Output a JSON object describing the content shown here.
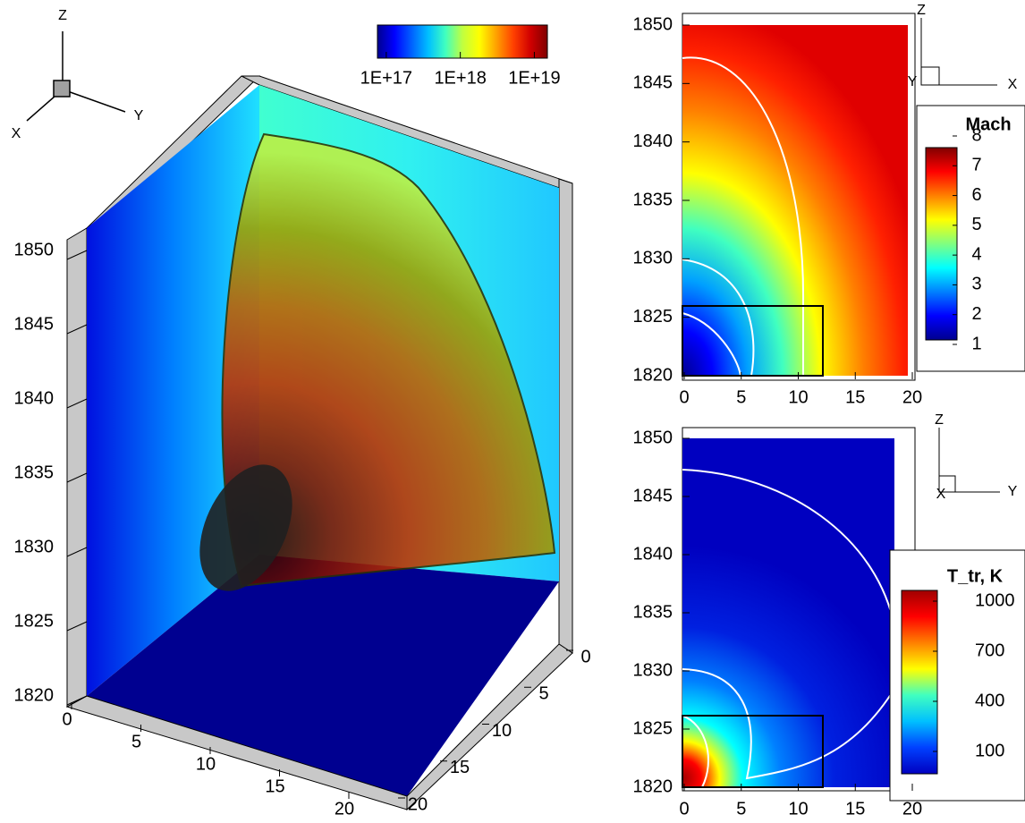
{
  "chart_data": [
    {
      "type": "surface3d",
      "colorbar": {
        "ticks": [
          {
            "value": 1e+17,
            "label": "1E+17"
          },
          {
            "value": 1e+18,
            "label": "1E+18"
          },
          {
            "value": 1e+19,
            "label": "1E+19"
          }
        ],
        "lim": [
          7.6e+16,
          1.5e+19
        ],
        "log_scale": true,
        "colors": [
          "#00008f",
          "#0000ff",
          "#0060ff",
          "#00c0ff",
          "#40ffc0",
          "#c0ff40",
          "#ffff00",
          "#ffa000",
          "#ff4000",
          "#d00000",
          "#800000"
        ]
      },
      "zlim": [
        1820,
        1850
      ],
      "zticks": [
        1820,
        1825,
        1830,
        1835,
        1840,
        1845,
        1850
      ],
      "xlim": [
        0,
        20
      ],
      "xticks": [
        0,
        5,
        10,
        15,
        20
      ],
      "ylim": [
        0,
        20
      ],
      "yticks": [
        0,
        5,
        10,
        15,
        20
      ],
      "triad": [
        "Z",
        "Y",
        "X"
      ]
    },
    {
      "type": "contour",
      "colorbar": {
        "title": "Mach",
        "lim": [
          1,
          8
        ],
        "ticks": [
          1,
          2,
          3,
          4,
          5,
          6,
          7,
          8
        ],
        "colors": [
          "#00008f",
          "#0000ff",
          "#0080ff",
          "#00ffff",
          "#80ff80",
          "#ffff00",
          "#ff8000",
          "#ff0000",
          "#800000"
        ]
      },
      "xlim": [
        0,
        20
      ],
      "xticks": [
        0,
        5,
        10,
        15,
        20
      ],
      "ylim": [
        1820,
        1850
      ],
      "yticks": [
        1820,
        1825,
        1830,
        1835,
        1840,
        1845,
        1850
      ],
      "triad": [
        "Z",
        "Y",
        "X"
      ]
    },
    {
      "type": "contour",
      "colorbar": {
        "title": "T_tr, K",
        "lim": [
          100,
          1000
        ],
        "ticks": [
          100,
          400,
          700,
          1000
        ],
        "colors": [
          "#0000c0",
          "#0040ff",
          "#00c0ff",
          "#40ffc0",
          "#ffff00",
          "#ff8000",
          "#ff0000",
          "#a00000"
        ]
      },
      "xlim": [
        0,
        20
      ],
      "xticks": [
        0,
        5,
        10,
        15,
        20
      ],
      "ylim": [
        1820,
        1850
      ],
      "yticks": [
        1820,
        1825,
        1830,
        1835,
        1840,
        1845,
        1850
      ],
      "triad": [
        "Z",
        "X",
        "Y"
      ]
    }
  ]
}
